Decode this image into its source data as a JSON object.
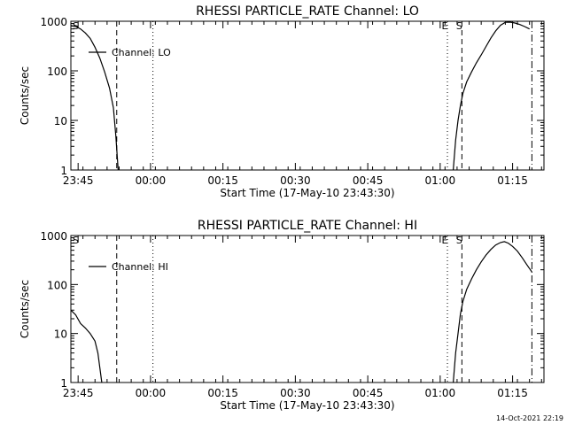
{
  "footer": {
    "timestamp": "14-Oct-2021 22:19"
  },
  "chart_data": [
    {
      "type": "line",
      "title": "RHESSI PARTICLE_RATE Channel: LO",
      "xlabel": "Start Time (17-May-10 23:43:30)",
      "ylabel": "Counts/sec",
      "yscale": "log",
      "ylim": [
        1,
        1000
      ],
      "xlim_minutes": [
        0,
        98
      ],
      "x_ticks": [
        {
          "min": 1.5,
          "label": "23:45"
        },
        {
          "min": 16.5,
          "label": "00:00"
        },
        {
          "min": 31.5,
          "label": "00:15"
        },
        {
          "min": 46.5,
          "label": "00:30"
        },
        {
          "min": 61.5,
          "label": "00:45"
        },
        {
          "min": 76.5,
          "label": "01:00"
        },
        {
          "min": 91.5,
          "label": "01:15"
        }
      ],
      "y_ticks": [
        {
          "value": 1,
          "label": "1"
        },
        {
          "value": 10,
          "label": "10"
        },
        {
          "value": 100,
          "label": "100"
        },
        {
          "value": 1000,
          "label": "1000"
        }
      ],
      "legend": {
        "label": "Channel: LO",
        "placement": "top-left"
      },
      "series": [
        {
          "name": "Channel: LO",
          "segments": [
            [
              [
                0,
                820
              ],
              [
                1,
                780
              ],
              [
                2,
                700
              ],
              [
                3,
                580
              ],
              [
                4,
                450
              ],
              [
                5,
                300
              ],
              [
                6,
                180
              ],
              [
                7,
                95
              ],
              [
                8,
                45
              ],
              [
                8.8,
                18
              ],
              [
                9.3,
                5
              ],
              [
                9.8,
                1
              ]
            ],
            [
              [
                79.2,
                1
              ],
              [
                79.7,
                4
              ],
              [
                80.2,
                10
              ],
              [
                80.7,
                20
              ],
              [
                81.2,
                35
              ],
              [
                82,
                60
              ],
              [
                83,
                95
              ],
              [
                84,
                145
              ],
              [
                85,
                210
              ],
              [
                86,
                310
              ],
              [
                87,
                460
              ],
              [
                88,
                640
              ],
              [
                89,
                830
              ],
              [
                90,
                950
              ],
              [
                91,
                960
              ],
              [
                92,
                920
              ],
              [
                93,
                860
              ],
              [
                94,
                780
              ],
              [
                95,
                700
              ]
            ]
          ]
        }
      ],
      "markers": [
        {
          "min": 9.5,
          "style": "dashed",
          "label": ""
        },
        {
          "min": 17.0,
          "style": "dotted",
          "label": ""
        },
        {
          "min": 78.0,
          "style": "dotted",
          "label": "E"
        },
        {
          "min": 81.0,
          "style": "dashed",
          "label": "S"
        },
        {
          "min": 95.5,
          "style": "dashdot",
          "label": ""
        }
      ],
      "corner_label": "S"
    },
    {
      "type": "line",
      "title": "RHESSI PARTICLE_RATE Channel: HI",
      "xlabel": "Start Time (17-May-10 23:43:30)",
      "ylabel": "Counts/sec",
      "yscale": "log",
      "ylim": [
        1,
        1000
      ],
      "xlim_minutes": [
        0,
        98
      ],
      "x_ticks": [
        {
          "min": 1.5,
          "label": "23:45"
        },
        {
          "min": 16.5,
          "label": "00:00"
        },
        {
          "min": 31.5,
          "label": "00:15"
        },
        {
          "min": 46.5,
          "label": "00:30"
        },
        {
          "min": 61.5,
          "label": "00:45"
        },
        {
          "min": 76.5,
          "label": "01:00"
        },
        {
          "min": 91.5,
          "label": "01:15"
        }
      ],
      "y_ticks": [
        {
          "value": 1,
          "label": "1"
        },
        {
          "value": 10,
          "label": "10"
        },
        {
          "value": 100,
          "label": "100"
        },
        {
          "value": 1000,
          "label": "1000"
        }
      ],
      "legend": {
        "label": "Channel: HI",
        "placement": "top-left"
      },
      "series": [
        {
          "name": "Channel: HI",
          "segments": [
            [
              [
                0,
                30
              ],
              [
                1,
                24
              ],
              [
                2,
                16
              ],
              [
                3,
                13
              ],
              [
                4,
                10
              ],
              [
                5,
                7
              ],
              [
                5.6,
                4
              ],
              [
                6,
                2
              ],
              [
                6.4,
                1
              ]
            ],
            [
              [
                79.2,
                1
              ],
              [
                79.7,
                4
              ],
              [
                80.2,
                10
              ],
              [
                80.7,
                25
              ],
              [
                81.2,
                45
              ],
              [
                82,
                80
              ],
              [
                83,
                130
              ],
              [
                84,
                200
              ],
              [
                85,
                290
              ],
              [
                86,
                400
              ],
              [
                87,
                520
              ],
              [
                88,
                640
              ],
              [
                89,
                720
              ],
              [
                89.8,
                750
              ],
              [
                90.6,
                700
              ],
              [
                91.5,
                600
              ],
              [
                92.5,
                480
              ],
              [
                93.5,
                350
              ],
              [
                94.5,
                250
              ],
              [
                95.5,
                180
              ]
            ]
          ]
        }
      ],
      "markers": [
        {
          "min": 9.5,
          "style": "dashed",
          "label": ""
        },
        {
          "min": 17.0,
          "style": "dotted",
          "label": ""
        },
        {
          "min": 78.0,
          "style": "dotted",
          "label": "E"
        },
        {
          "min": 81.0,
          "style": "dashed",
          "label": "S"
        },
        {
          "min": 95.5,
          "style": "dashdot",
          "label": ""
        }
      ],
      "corner_label": "S"
    }
  ]
}
